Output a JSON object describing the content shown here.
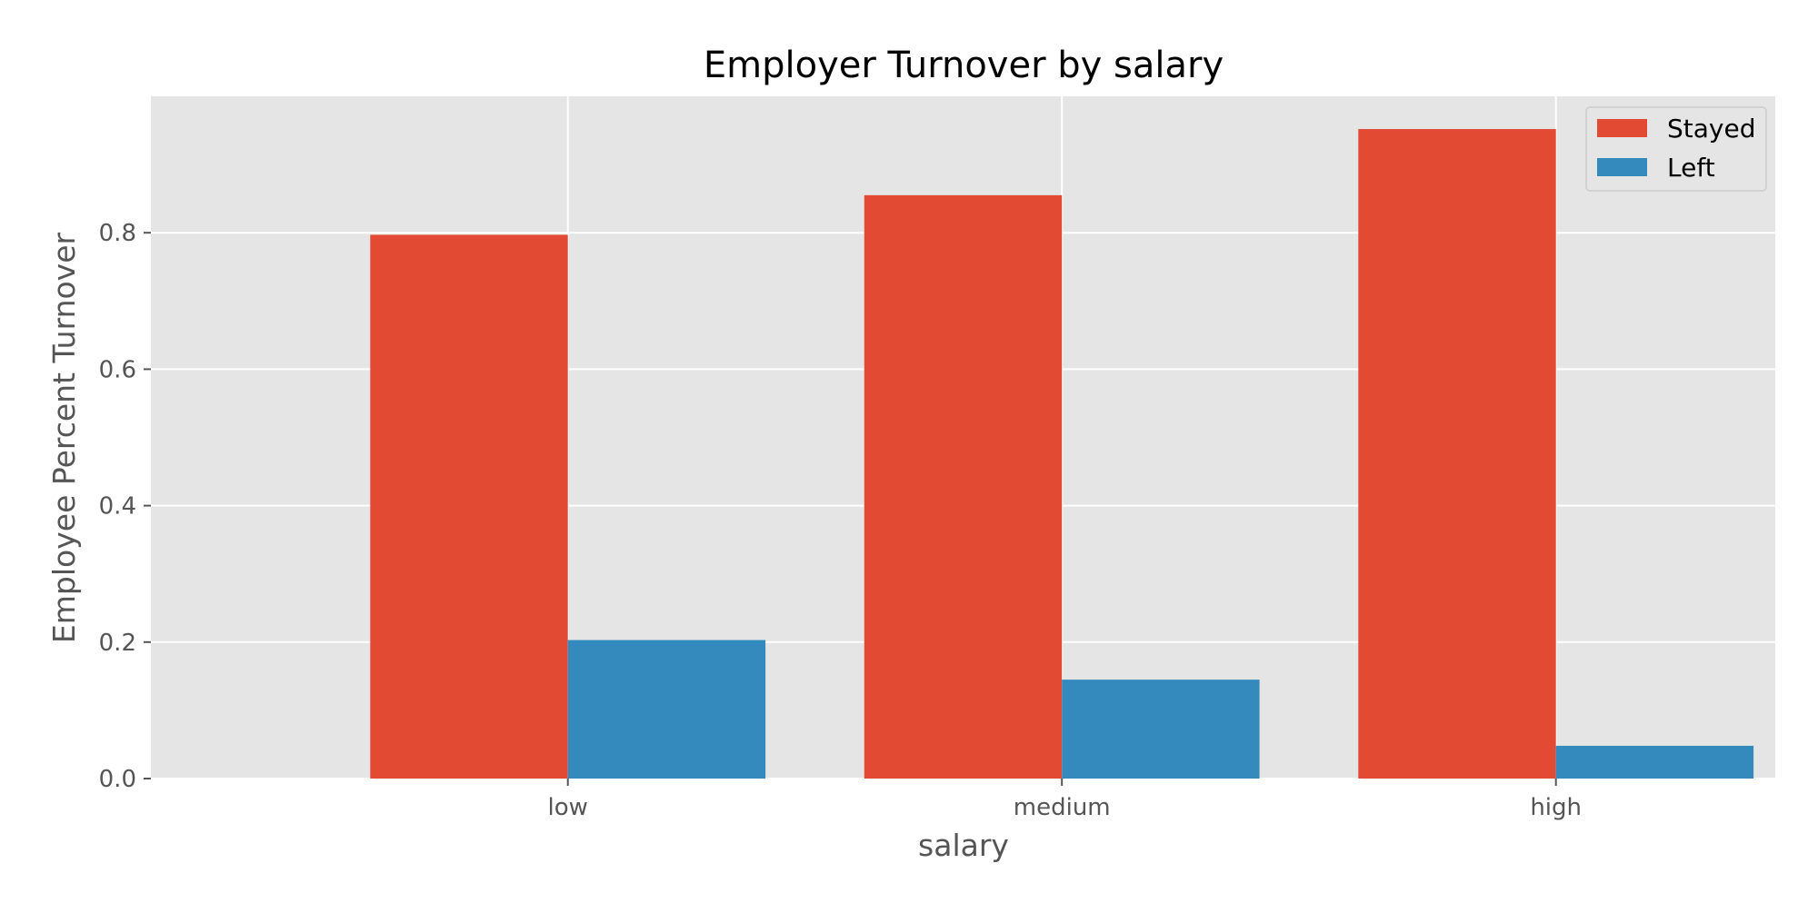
{
  "chart_data": {
    "type": "bar",
    "title": "Employer Turnover by salary",
    "xlabel": "salary",
    "ylabel": "Employee Percent Turnover",
    "categories": [
      "low",
      "medium",
      "high"
    ],
    "series": [
      {
        "name": "Stayed",
        "color": "#E24A33",
        "values": [
          0.797,
          0.855,
          0.952
        ]
      },
      {
        "name": "Left",
        "color": "#348ABD",
        "values": [
          0.203,
          0.145,
          0.048
        ]
      }
    ],
    "ylim": [
      0,
      1.0
    ],
    "yticks": [
      "0.0",
      "0.2",
      "0.4",
      "0.6",
      "0.8"
    ],
    "grid": true,
    "legend": "top-right",
    "style": {
      "plot_background": "#E5E5E5",
      "grid_color": "#FFFFFF",
      "text_color": "#555555"
    }
  }
}
